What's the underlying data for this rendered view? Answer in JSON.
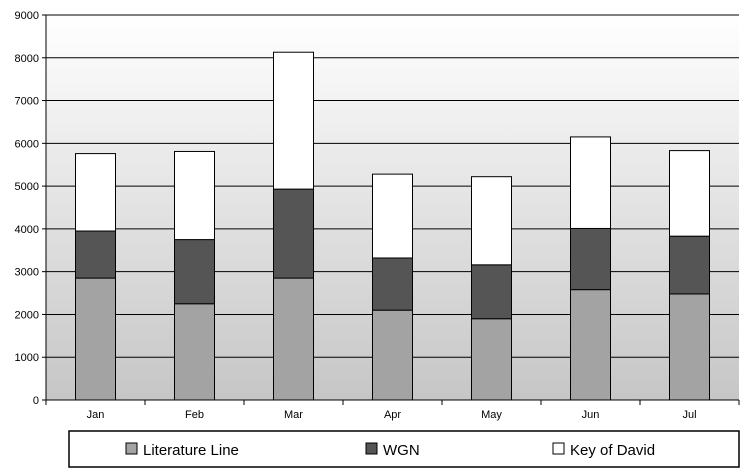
{
  "chart_data": {
    "type": "bar",
    "stacked": true,
    "categories": [
      "Jan",
      "Feb",
      "Mar",
      "Apr",
      "May",
      "Jun",
      "Jul"
    ],
    "series": [
      {
        "name": "Literature Line",
        "values": [
          2850,
          2250,
          2850,
          2100,
          1900,
          2580,
          2480
        ]
      },
      {
        "name": "WGN",
        "values": [
          1100,
          1500,
          2080,
          1220,
          1260,
          1430,
          1350
        ]
      },
      {
        "name": "Key of David",
        "values": [
          1810,
          2060,
          3200,
          1960,
          2060,
          2140,
          2000
        ]
      }
    ],
    "colors": [
      "#a3a3a3",
      "#555555",
      "#ffffff"
    ],
    "ylim": [
      0,
      9000
    ],
    "yticks": [
      "0",
      "1000",
      "2000",
      "3000",
      "4000",
      "5000",
      "6000",
      "7000",
      "8000",
      "9000"
    ],
    "grid": true,
    "legend": "bottom",
    "title": "",
    "xlabel": "",
    "ylabel": ""
  }
}
